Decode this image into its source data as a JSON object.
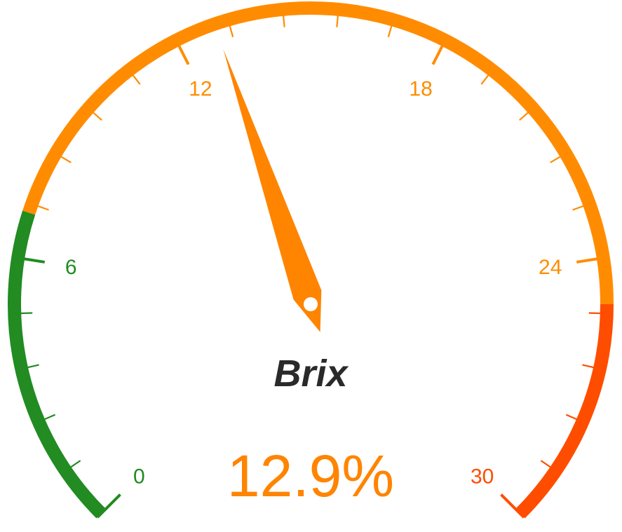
{
  "chart_data": {
    "type": "gauge",
    "title": "Brix",
    "value": 12.9,
    "value_label": "12.9%",
    "min": 0,
    "max": 30,
    "major_ticks": [
      0,
      6,
      12,
      18,
      24,
      30
    ],
    "minor_ticks_per_major": 5,
    "bands": [
      {
        "from": 0,
        "to": 7,
        "color": "#228b22"
      },
      {
        "from": 7,
        "to": 25,
        "color": "#ff8c00"
      },
      {
        "from": 25,
        "to": 30,
        "color": "#ff4d00"
      }
    ],
    "needle_color": "#ff8400",
    "value_color": "#ff8400",
    "title_color": "#2a2a2a"
  }
}
